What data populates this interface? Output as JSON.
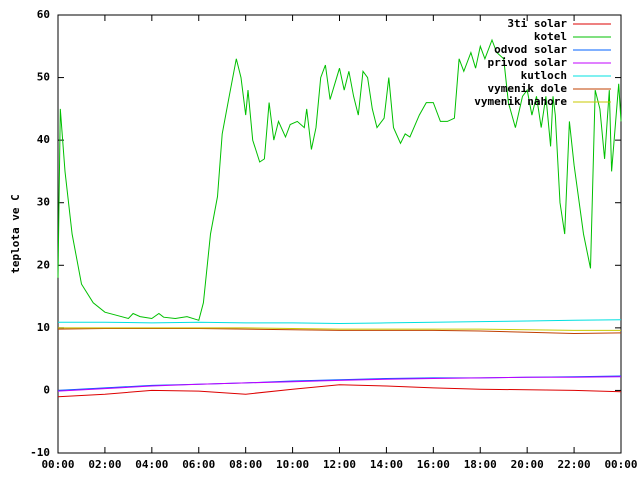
{
  "chart_data": {
    "type": "line",
    "ylabel": "teplota ve C",
    "xlim": [
      0,
      24
    ],
    "ylim": [
      -10,
      60
    ],
    "xticks": [
      {
        "value": 0,
        "label": "00:00"
      },
      {
        "value": 2,
        "label": "02:00"
      },
      {
        "value": 4,
        "label": "04:00"
      },
      {
        "value": 6,
        "label": "06:00"
      },
      {
        "value": 8,
        "label": "08:00"
      },
      {
        "value": 10,
        "label": "10:00"
      },
      {
        "value": 12,
        "label": "12:00"
      },
      {
        "value": 14,
        "label": "14:00"
      },
      {
        "value": 16,
        "label": "16:00"
      },
      {
        "value": 18,
        "label": "18:00"
      },
      {
        "value": 20,
        "label": "20:00"
      },
      {
        "value": 22,
        "label": "22:00"
      },
      {
        "value": 24,
        "label": "00:00"
      }
    ],
    "yticks": [
      -10,
      0,
      10,
      20,
      30,
      40,
      50,
      60
    ],
    "legend": "top-right",
    "x": [
      0,
      2,
      4,
      6,
      8,
      10,
      12,
      14,
      16,
      18,
      20,
      22,
      24
    ],
    "series": [
      {
        "name": "3ti solar",
        "color": "#dd0000",
        "values": [
          -1,
          -0.6,
          0,
          -0.1,
          -0.6,
          0.2,
          0.9,
          0.7,
          0.4,
          0.2,
          0.1,
          0,
          -0.2
        ]
      },
      {
        "name": "kotel",
        "color": "#00c000",
        "x": [
          0,
          0.1,
          0.3,
          0.6,
          1,
          1.5,
          2,
          2.5,
          3,
          3.2,
          3.5,
          4,
          4.3,
          4.5,
          5,
          5.5,
          6,
          6.2,
          6.5,
          6.8,
          7,
          7.3,
          7.6,
          7.8,
          8,
          8.1,
          8.3,
          8.6,
          8.8,
          9,
          9.2,
          9.4,
          9.7,
          9.9,
          10.2,
          10.5,
          10.6,
          10.8,
          11,
          11.2,
          11.4,
          11.6,
          11.8,
          12,
          12.2,
          12.4,
          12.6,
          12.8,
          13,
          13.2,
          13.4,
          13.6,
          13.9,
          14.1,
          14.3,
          14.6,
          14.8,
          15,
          15.4,
          15.7,
          16,
          16.3,
          16.6,
          16.9,
          17.1,
          17.3,
          17.6,
          17.8,
          18,
          18.2,
          18.5,
          18.7,
          19,
          19.2,
          19.5,
          19.8,
          20,
          20.2,
          20.4,
          20.6,
          20.8,
          21,
          21.1,
          21.2,
          21.4,
          21.6,
          21.8,
          22,
          22.4,
          22.7,
          22.9,
          23.1,
          23.3,
          23.5,
          23.6,
          23.9,
          24
        ],
        "values": [
          18,
          45,
          35,
          25,
          17,
          14,
          12.5,
          12,
          11.5,
          12.3,
          11.8,
          11.5,
          12.3,
          11.7,
          11.5,
          11.8,
          11.2,
          14,
          25,
          31,
          41,
          47,
          53,
          50,
          44,
          48,
          40,
          36.5,
          37,
          46,
          40,
          43,
          40.5,
          42.5,
          43,
          42,
          45,
          38.5,
          42,
          50,
          52,
          46.5,
          49,
          51.5,
          48,
          51,
          47,
          44,
          51,
          50,
          45,
          42,
          43.5,
          50,
          42,
          39.5,
          41,
          40.5,
          44,
          46,
          46,
          43,
          43,
          43.5,
          53,
          51,
          54,
          51.5,
          55,
          53,
          56,
          54,
          53,
          46,
          42,
          47,
          48,
          44,
          47,
          42,
          47,
          39,
          47,
          44,
          30,
          25,
          43,
          36,
          25,
          19.5,
          48,
          45,
          37,
          48,
          35,
          49,
          43
        ]
      },
      {
        "name": "odvod solar",
        "color": "#0060ff",
        "values": [
          0,
          0.4,
          0.8,
          1.0,
          1.2,
          1.5,
          1.7,
          1.9,
          2.0,
          2.0,
          2.1,
          2.2,
          2.3
        ]
      },
      {
        "name": "privod solar",
        "color": "#c000ff",
        "values": [
          -0.1,
          0.3,
          0.7,
          1.0,
          1.2,
          1.4,
          1.6,
          1.8,
          1.9,
          2.0,
          2.1,
          2.1,
          2.2
        ]
      },
      {
        "name": "kutloch",
        "color": "#00e0e0",
        "values": [
          10.9,
          10.9,
          10.8,
          10.9,
          10.8,
          10.8,
          10.7,
          10.8,
          10.9,
          11.0,
          11.1,
          11.2,
          11.3
        ]
      },
      {
        "name": "vymenik dole",
        "color": "#c04000",
        "values": [
          9.8,
          9.9,
          9.9,
          9.9,
          9.8,
          9.7,
          9.6,
          9.6,
          9.6,
          9.5,
          9.3,
          9.1,
          9.2
        ]
      },
      {
        "name": "vymenik nahore",
        "color": "#c8c800",
        "values": [
          10.0,
          10.0,
          10.0,
          10.0,
          10.0,
          9.9,
          9.8,
          9.8,
          9.8,
          9.8,
          9.7,
          9.6,
          9.6
        ]
      }
    ]
  }
}
